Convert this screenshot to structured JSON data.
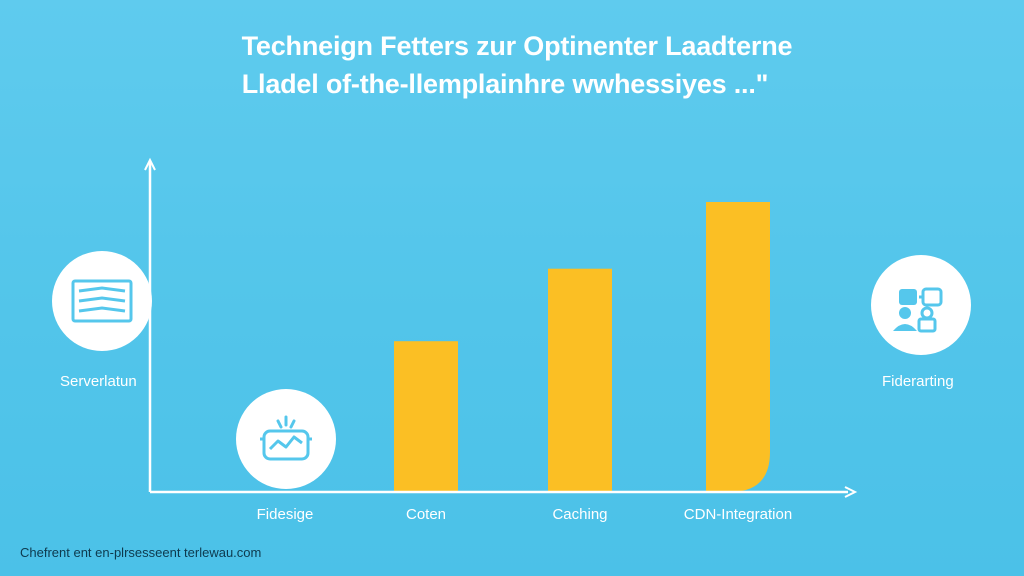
{
  "title": {
    "line1": "Techneign Fetters zur Optinenter Laadterne",
    "line2": "Lladel of-the-llemplainhre wwhessiyes ...\""
  },
  "colors": {
    "background": "#55C7EC",
    "bar": "#FBBF24",
    "axis": "#FFFFFF",
    "icon_stroke": "#55C7EC",
    "footer_text": "#0E3A4E"
  },
  "side_labels": {
    "left": "Serverlatun",
    "right": "Fiderarting"
  },
  "icons": {
    "left": "server-stack-icon",
    "right": "network-users-icon",
    "bottom": "monitor-chart-icon"
  },
  "footer": "Chefrent ent en-plrsesseent terlewau.com",
  "chart_data": {
    "type": "bar",
    "title": "Techneign Fetters zur Optinenter Laadterne",
    "xlabel": "",
    "ylabel": "",
    "categories": [
      "Fidesige",
      "Coten",
      "Caching",
      "CDN-Integration"
    ],
    "values": [
      0,
      52,
      77,
      100
    ],
    "ylim": [
      0,
      120
    ],
    "grid": false,
    "legend": "none"
  }
}
